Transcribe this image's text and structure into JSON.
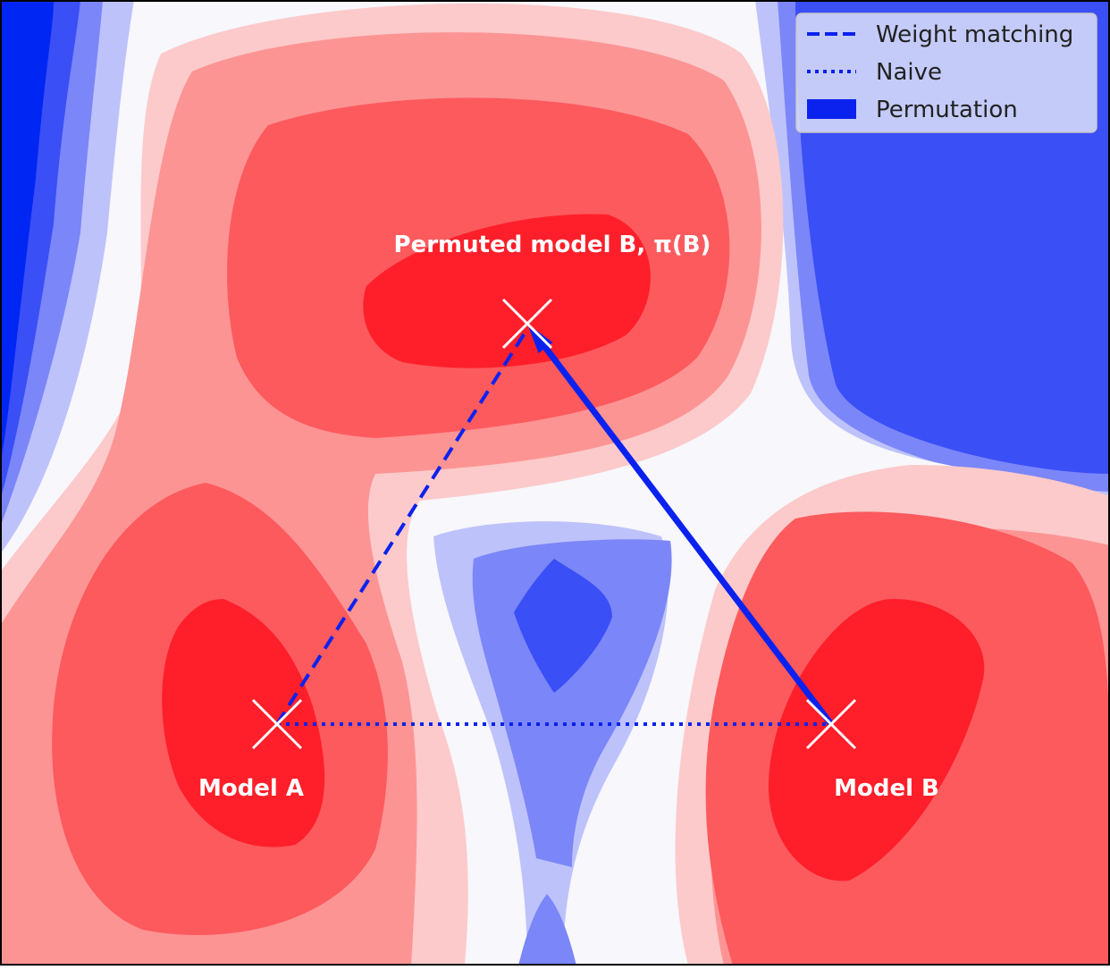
{
  "colors": {
    "deep_blue": "#0026f4",
    "blue_2": "#3a4ff6",
    "blue_3": "#7b86f8",
    "blue_4": "#bdc2fb",
    "neutral": "#f7f7fc",
    "red_4": "#fccaca",
    "red_3": "#fd9494",
    "red_2": "#fd5a5e",
    "deep_red": "#fe1f2a",
    "path": "#0b22ee",
    "marker": "#ffffff"
  },
  "points": {
    "model_a": {
      "label": "Model A"
    },
    "model_b": {
      "label": "Model B"
    },
    "permuted_b": {
      "label": "Permuted model B, π(B)"
    }
  },
  "legend": {
    "placement": "top-right",
    "items": [
      {
        "label": "Weight matching",
        "style": "dashed"
      },
      {
        "label": "Naive",
        "style": "dotted"
      },
      {
        "label": "Permutation",
        "style": "arrow"
      }
    ]
  }
}
